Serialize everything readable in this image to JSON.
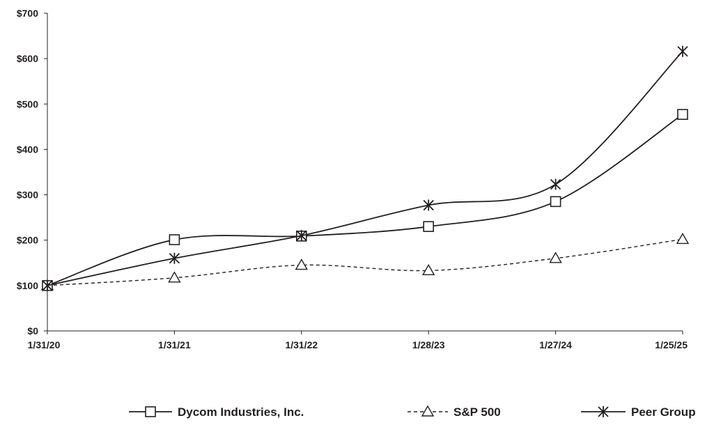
{
  "chart_data": {
    "type": "line",
    "title": "",
    "xlabel": "",
    "ylabel": "",
    "categories": [
      "1/31/20",
      "1/31/21",
      "1/31/22",
      "1/28/23",
      "1/27/24",
      "1/25/25"
    ],
    "y_tick_labels": [
      "$0",
      "$100",
      "$200",
      "$300",
      "$400",
      "$500",
      "$600",
      "$700"
    ],
    "ylim": [
      0,
      700
    ],
    "grid": false,
    "legend_position": "bottom",
    "series": [
      {
        "name": "Dycom Industries, Inc.",
        "marker": "square",
        "line_style": "solid",
        "values": [
          100,
          201,
          209,
          230,
          285,
          477
        ]
      },
      {
        "name": "S&P 500",
        "marker": "triangle",
        "line_style": "dashed",
        "values": [
          100,
          117,
          145,
          133,
          160,
          202
        ]
      },
      {
        "name": "Peer Group",
        "marker": "star",
        "line_style": "solid",
        "values": [
          100,
          160,
          210,
          277,
          323,
          616
        ]
      }
    ],
    "colors": {
      "line": "#231f20",
      "axis": "#231f20"
    }
  }
}
